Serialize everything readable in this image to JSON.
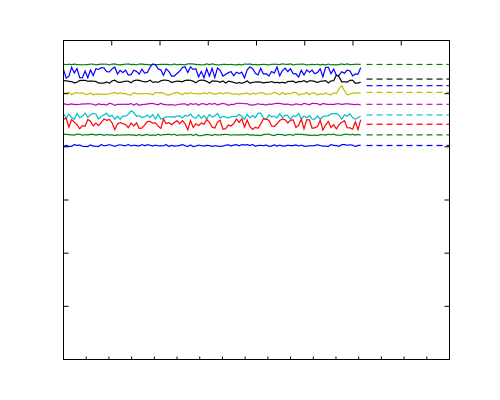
{
  "chart_data": {
    "type": "line",
    "title": "",
    "xlabel": "",
    "ylabel": "",
    "xlim": [
      0,
      100
    ],
    "ylim": [
      0,
      12
    ],
    "grid": false,
    "legend": "none",
    "tick_labels_visible": false,
    "x_minor_ticks_bottom": 17,
    "series": [
      {
        "color": "#008000",
        "level": 11.1,
        "noise": 0.02,
        "spikes": [],
        "dashed": true
      },
      {
        "color": "#0000ff",
        "level": 10.8,
        "noise": 0.22,
        "spikes": [
          [
            23,
            0.35
          ]
        ],
        "dashed": true,
        "dash_level": 10.3
      },
      {
        "color": "#000000",
        "level": 10.45,
        "noise": 0.06,
        "spikes": [
          [
            71,
            0.35
          ]
        ],
        "dashed": true,
        "dash_level": 10.55
      },
      {
        "color": "#bfbf00",
        "level": 10.0,
        "noise": 0.05,
        "spikes": [
          [
            72,
            0.3
          ]
        ],
        "dashed": true,
        "dash_level": 10.05
      },
      {
        "color": "#bf00bf",
        "level": 9.6,
        "noise": 0.04,
        "spikes": [],
        "dashed": true
      },
      {
        "color": "#00bfbf",
        "level": 9.15,
        "noise": 0.12,
        "spikes": [
          [
            18,
            0.25
          ]
        ],
        "dashed": true,
        "dash_level": 9.2
      },
      {
        "color": "#ff0000",
        "level": 8.85,
        "noise": 0.22,
        "spikes": [],
        "dashed": true
      },
      {
        "color": "#008000",
        "level": 8.45,
        "noise": 0.03,
        "spikes": [],
        "dashed": true
      },
      {
        "color": "#0000ff",
        "level": 8.05,
        "noise": 0.04,
        "spikes": [],
        "dashed": true
      }
    ]
  }
}
